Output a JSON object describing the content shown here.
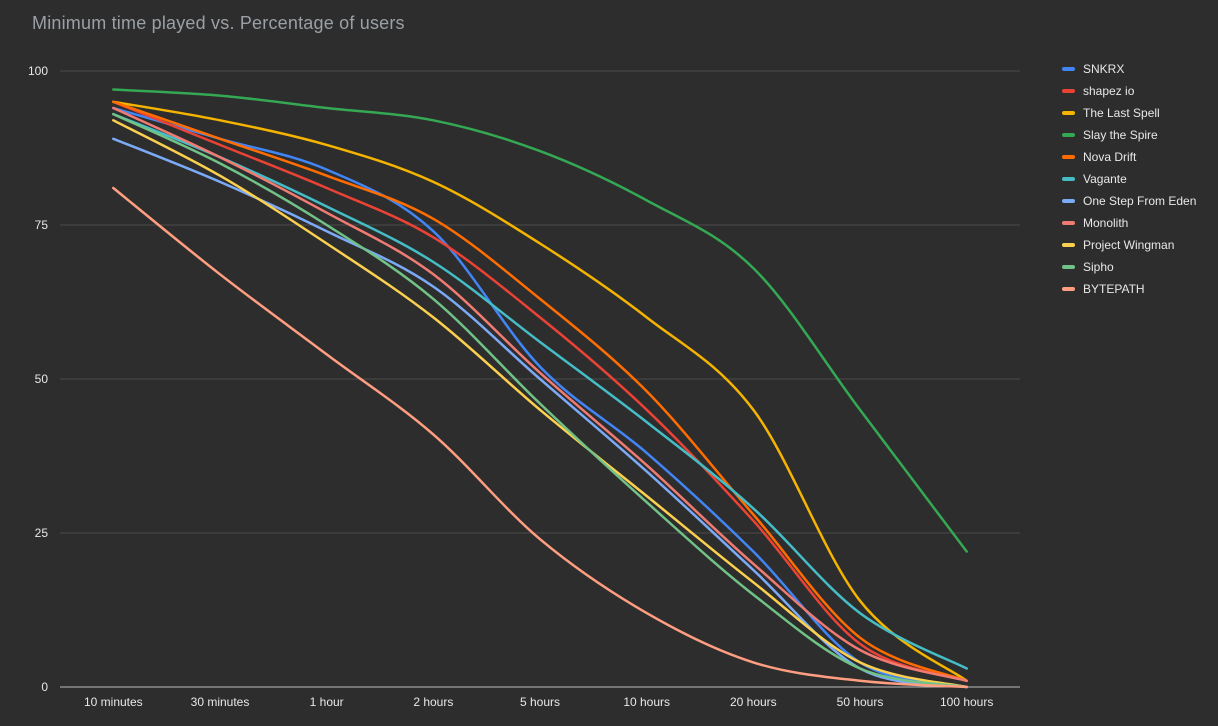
{
  "chart_data": {
    "type": "line",
    "title": "Minimum time played vs. Percentage of users",
    "xlabel": "",
    "ylabel": "",
    "grid": true,
    "legend_position": "right",
    "ylim": [
      0,
      100
    ],
    "yticks": [
      0,
      25,
      50,
      75,
      100
    ],
    "categories": [
      "10 minutes",
      "30 minutes",
      "1 hour",
      "2 hours",
      "5 hours",
      "10 hours",
      "20 hours",
      "50 hours",
      "100 hours"
    ],
    "series": [
      {
        "name": "SNKRX",
        "color": "#4285F4",
        "values": [
          94,
          89,
          84,
          74,
          52,
          38,
          22,
          4,
          0
        ]
      },
      {
        "name": "shapez io",
        "color": "#EA4335",
        "values": [
          95,
          88,
          81,
          73,
          60,
          45,
          27,
          7,
          1
        ]
      },
      {
        "name": "The Last Spell",
        "color": "#F4B400",
        "values": [
          95,
          92,
          88,
          82,
          72,
          60,
          45,
          14,
          1
        ]
      },
      {
        "name": "Slay the Spire",
        "color": "#34A853",
        "values": [
          97,
          96,
          94,
          92,
          87,
          79,
          68,
          45,
          22
        ]
      },
      {
        "name": "Nova Drift",
        "color": "#FF6D01",
        "values": [
          95,
          89,
          83,
          76,
          63,
          48,
          28,
          8,
          1
        ]
      },
      {
        "name": "Vagante",
        "color": "#46BDC6",
        "values": [
          93,
          86,
          78,
          69,
          56,
          43,
          29,
          12,
          3
        ]
      },
      {
        "name": "One Step From Eden",
        "color": "#7BAAF7",
        "values": [
          89,
          82,
          74,
          65,
          50,
          35,
          19,
          3,
          0
        ]
      },
      {
        "name": "Monolith",
        "color": "#F07B72",
        "values": [
          94,
          86,
          77,
          67,
          51,
          36,
          20,
          6,
          1
        ]
      },
      {
        "name": "Project Wingman",
        "color": "#FCD04F",
        "values": [
          92,
          83,
          72,
          60,
          45,
          31,
          17,
          4,
          0
        ]
      },
      {
        "name": "Sipho",
        "color": "#71C287",
        "values": [
          93,
          85,
          75,
          63,
          46,
          30,
          15,
          3,
          0
        ]
      },
      {
        "name": "BYTEPATH",
        "color": "#FF9E80",
        "values": [
          81,
          67,
          54,
          41,
          24,
          12,
          4,
          1,
          0
        ]
      }
    ],
    "colors": {
      "background": "#2d2d2d",
      "title_text": "#9aa0a6",
      "axis_text": "#e8e8e8",
      "gridline": "#4a4a4a",
      "axis_line": "#bdbdbd"
    }
  }
}
